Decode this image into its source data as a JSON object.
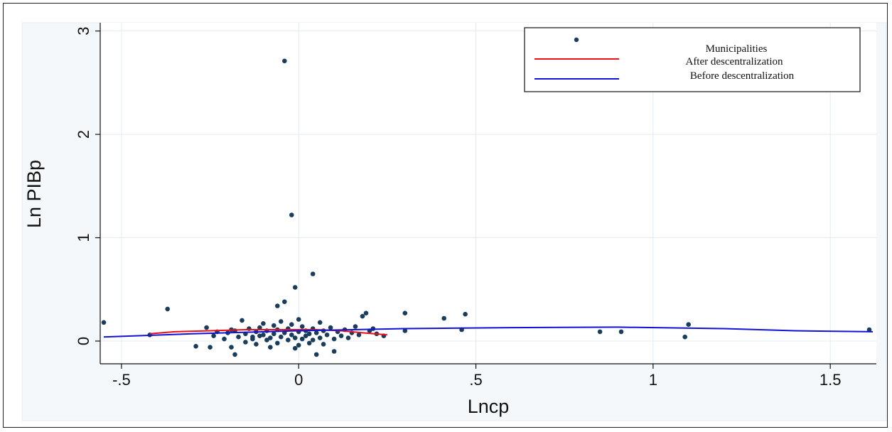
{
  "chart_data": {
    "type": "scatter",
    "xlabel": "Lncp",
    "ylabel": "Ln PIBp",
    "xlim": [
      -0.56,
      1.63
    ],
    "ylim": [
      -0.22,
      3.08
    ],
    "x_ticks": [
      {
        "value": -0.5,
        "label": "-.5"
      },
      {
        "value": 0,
        "label": "0"
      },
      {
        "value": 0.5,
        "label": ".5"
      },
      {
        "value": 1,
        "label": "1"
      },
      {
        "value": 1.5,
        "label": "1.5"
      }
    ],
    "y_ticks": [
      {
        "value": 0,
        "label": "0"
      },
      {
        "value": 1,
        "label": "1"
      },
      {
        "value": 2,
        "label": "2"
      },
      {
        "value": 3,
        "label": "3"
      }
    ],
    "grid": true,
    "legend": {
      "position": "top-right",
      "entries": [
        {
          "label": "Municipalities",
          "kind": "marker",
          "color": "#1a3d5c"
        },
        {
          "label": "After descentralization",
          "kind": "line",
          "color": "#e8101a"
        },
        {
          "label": "Before descentralization",
          "kind": "line",
          "color": "#1212d6"
        }
      ]
    },
    "series": [
      {
        "name": "Municipalities",
        "kind": "scatter",
        "color": "#1a3d5c",
        "points": [
          [
            -0.55,
            0.18
          ],
          [
            -0.37,
            0.31
          ],
          [
            -0.42,
            0.06
          ],
          [
            -0.29,
            -0.05
          ],
          [
            -0.26,
            0.13
          ],
          [
            -0.25,
            -0.06
          ],
          [
            -0.24,
            0.05
          ],
          [
            -0.23,
            0.09
          ],
          [
            -0.21,
            0.02
          ],
          [
            -0.2,
            0.08
          ],
          [
            -0.19,
            0.11
          ],
          [
            -0.19,
            -0.06
          ],
          [
            -0.18,
            0.1
          ],
          [
            -0.17,
            0.04
          ],
          [
            -0.16,
            0.2
          ],
          [
            -0.15,
            0.07
          ],
          [
            -0.15,
            -0.01
          ],
          [
            -0.14,
            0.12
          ],
          [
            -0.13,
            0.04
          ],
          [
            -0.12,
            -0.03
          ],
          [
            -0.12,
            0.09
          ],
          [
            -0.11,
            0.13
          ],
          [
            -0.1,
            0.06
          ],
          [
            -0.1,
            0.17
          ],
          [
            -0.09,
            0.01
          ],
          [
            -0.09,
            0.1
          ],
          [
            -0.08,
            0.03
          ],
          [
            -0.08,
            -0.06
          ],
          [
            -0.07,
            0.07
          ],
          [
            -0.07,
            0.15
          ],
          [
            -0.06,
            0.11
          ],
          [
            -0.06,
            -0.02
          ],
          [
            -0.05,
            0.04
          ],
          [
            -0.05,
            0.19
          ],
          [
            -0.04,
            0.08
          ],
          [
            -0.04,
            0.38
          ],
          [
            -0.03,
            0.01
          ],
          [
            -0.03,
            0.12
          ],
          [
            -0.02,
            0.06
          ],
          [
            -0.02,
            0.16
          ],
          [
            -0.01,
            0.03
          ],
          [
            -0.01,
            -0.07
          ],
          [
            0.0,
            0.09
          ],
          [
            0.0,
            0.21
          ],
          [
            0.01,
            0.02
          ],
          [
            0.01,
            0.14
          ],
          [
            0.02,
            0.05
          ],
          [
            0.02,
            0.1
          ],
          [
            0.03,
            -0.02
          ],
          [
            0.03,
            0.07
          ],
          [
            0.04,
            0.12
          ],
          [
            0.04,
            0.01
          ],
          [
            0.05,
            0.08
          ],
          [
            0.06,
            0.18
          ],
          [
            0.06,
            0.03
          ],
          [
            0.07,
            0.1
          ],
          [
            0.07,
            -0.03
          ],
          [
            0.08,
            0.06
          ],
          [
            0.09,
            0.13
          ],
          [
            0.1,
            0.02
          ],
          [
            0.11,
            0.09
          ],
          [
            0.12,
            0.05
          ],
          [
            0.13,
            0.11
          ],
          [
            0.14,
            0.03
          ],
          [
            0.15,
            0.08
          ],
          [
            0.16,
            0.14
          ],
          [
            0.17,
            0.06
          ],
          [
            0.18,
            0.24
          ],
          [
            0.19,
            0.27
          ],
          [
            0.2,
            0.1
          ],
          [
            0.21,
            0.12
          ],
          [
            0.22,
            0.07
          ],
          [
            0.24,
            0.05
          ],
          [
            0.3,
            0.1
          ],
          [
            0.3,
            0.27
          ],
          [
            0.41,
            0.22
          ],
          [
            0.46,
            0.11
          ],
          [
            0.47,
            0.26
          ],
          [
            -0.04,
            2.71
          ],
          [
            -0.02,
            1.22
          ],
          [
            0.04,
            0.65
          ],
          [
            -0.01,
            0.52
          ],
          [
            -0.06,
            0.34
          ],
          [
            0.85,
            0.09
          ],
          [
            0.91,
            0.09
          ],
          [
            1.09,
            0.04
          ],
          [
            1.1,
            0.16
          ],
          [
            1.61,
            0.11
          ],
          [
            -0.11,
            0.05
          ],
          [
            0.0,
            -0.04
          ],
          [
            0.05,
            -0.13
          ],
          [
            -0.18,
            -0.13
          ],
          [
            0.1,
            -0.1
          ],
          [
            -0.13,
            0.02
          ]
        ]
      },
      {
        "name": "After descentralization",
        "kind": "line",
        "color": "#e8101a",
        "points": [
          [
            -0.42,
            0.07
          ],
          [
            -0.35,
            0.09
          ],
          [
            -0.25,
            0.1
          ],
          [
            -0.15,
            0.11
          ],
          [
            -0.05,
            0.11
          ],
          [
            0.05,
            0.11
          ],
          [
            0.12,
            0.1
          ],
          [
            0.18,
            0.08
          ],
          [
            0.25,
            0.06
          ]
        ]
      },
      {
        "name": "Before descentralization",
        "kind": "line",
        "color": "#1212d6",
        "points": [
          [
            -0.55,
            0.04
          ],
          [
            -0.3,
            0.07
          ],
          [
            0.0,
            0.1
          ],
          [
            0.3,
            0.12
          ],
          [
            0.6,
            0.13
          ],
          [
            0.9,
            0.135
          ],
          [
            1.2,
            0.12
          ],
          [
            1.4,
            0.1
          ],
          [
            1.62,
            0.09
          ]
        ]
      }
    ]
  }
}
